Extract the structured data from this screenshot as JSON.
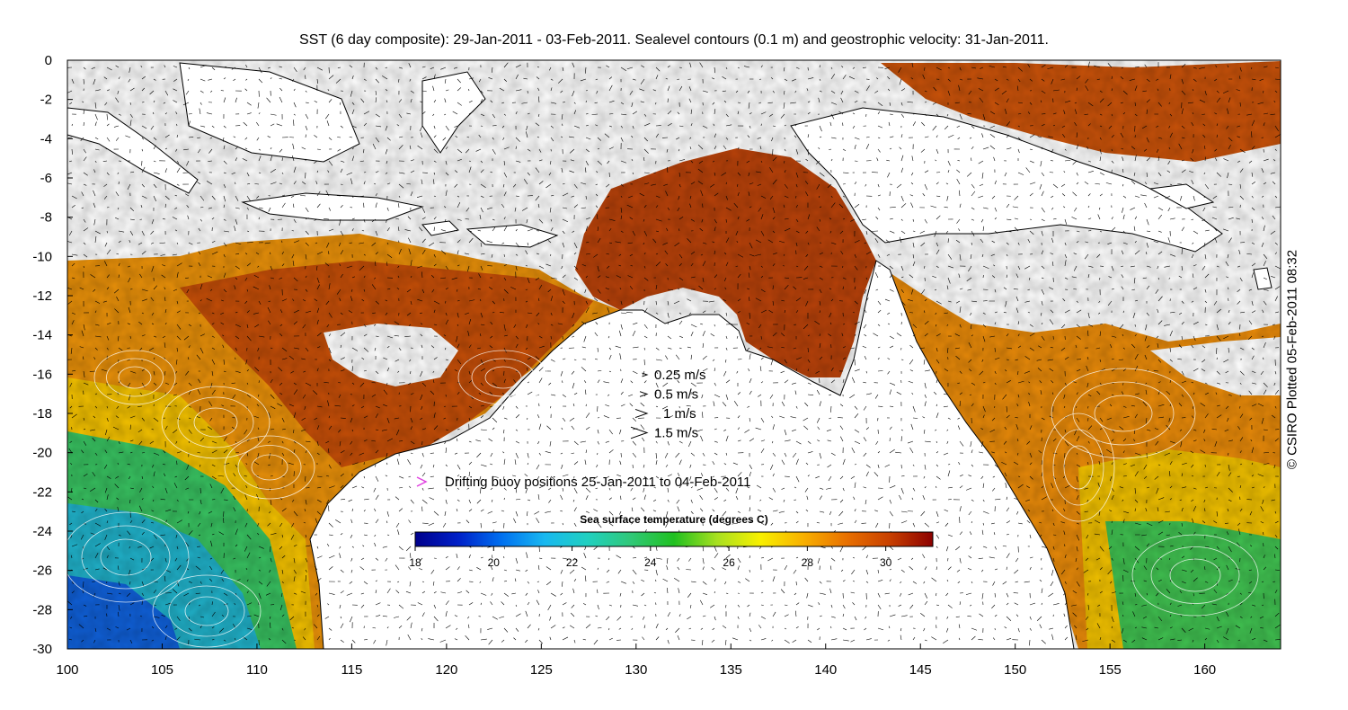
{
  "title": "SST (6 day composite): 29-Jan-2011 - 03-Feb-2011. Sealevel contours (0.1 m) and geostrophic velocity: 31-Jan-2011.",
  "credit": "© CSIRO Plotted 05-Feb-2011 08:32",
  "axes": {
    "x_ticks": [
      "100",
      "105",
      "110",
      "115",
      "120",
      "125",
      "130",
      "135",
      "140",
      "145",
      "150",
      "155",
      "160"
    ],
    "y_ticks": [
      "0",
      "-2",
      "-4",
      "-6",
      "-8",
      "-10",
      "-12",
      "-14",
      "-16",
      "-18",
      "-20",
      "-22",
      "-24",
      "-26",
      "-28",
      "-30"
    ],
    "x_range": [
      100,
      164
    ],
    "y_range": [
      -30,
      0
    ]
  },
  "velocity_legend": [
    {
      "label": "0.25 m/s",
      "speed": 0.25
    },
    {
      "label": "0.5 m/s",
      "speed": 0.5
    },
    {
      "label": "1 m/s",
      "speed": 1
    },
    {
      "label": "1.5 m/s",
      "speed": 1.5
    }
  ],
  "buoy_legend": {
    "label": "Drifting buoy positions 25-Jan-2011 to 04-Feb-2011",
    "color": "#e040e0"
  },
  "colorbar": {
    "title": "Sea surface temperature (degrees C)",
    "ticks": [
      "18",
      "20",
      "22",
      "24",
      "26",
      "28",
      "30"
    ],
    "range": [
      18,
      31.2
    ],
    "colors": [
      "#00008c",
      "#0020c8",
      "#0070f0",
      "#18b8f0",
      "#20d0c0",
      "#30c878",
      "#20c020",
      "#a8e020",
      "#f8f000",
      "#f8b000",
      "#e87000",
      "#c84000",
      "#8c0000"
    ]
  }
}
